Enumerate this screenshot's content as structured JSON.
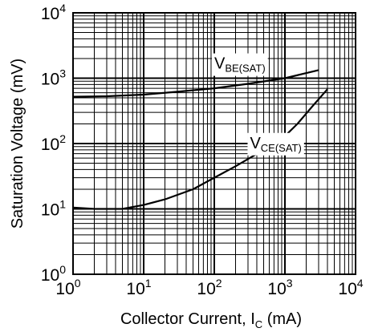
{
  "chart_data": {
    "type": "line",
    "x_scale": "log",
    "y_scale": "log",
    "xlim": [
      1,
      10000
    ],
    "ylim": [
      1,
      10000
    ],
    "grid": true,
    "xlabel": {
      "text": "Collector Current, I",
      "sub": "C",
      "unit": " (mA)"
    },
    "ylabel": "Saturation Voltage (mV)",
    "x_ticks": [
      {
        "base": "10",
        "exp": "0"
      },
      {
        "base": "10",
        "exp": "1"
      },
      {
        "base": "10",
        "exp": "2"
      },
      {
        "base": "10",
        "exp": "3"
      },
      {
        "base": "10",
        "exp": "4"
      }
    ],
    "y_ticks": [
      {
        "base": "10",
        "exp": "0"
      },
      {
        "base": "10",
        "exp": "1"
      },
      {
        "base": "10",
        "exp": "2"
      },
      {
        "base": "10",
        "exp": "3"
      },
      {
        "base": "10",
        "exp": "4"
      }
    ],
    "series": [
      {
        "label_main": "V",
        "label_sub": "BE(SAT)",
        "label_at": [
          100,
          1400
        ],
        "color": "#000000",
        "points": [
          [
            1,
            520
          ],
          [
            3,
            530
          ],
          [
            10,
            560
          ],
          [
            30,
            620
          ],
          [
            100,
            700
          ],
          [
            300,
            820
          ],
          [
            1000,
            1000
          ],
          [
            3000,
            1330
          ]
        ]
      },
      {
        "label_main": "V",
        "label_sub": "CE(SAT)",
        "label_at": [
          320,
          85
        ],
        "color": "#000000",
        "points": [
          [
            1,
            10.5
          ],
          [
            2,
            10
          ],
          [
            5,
            10
          ],
          [
            10,
            11.5
          ],
          [
            20,
            14
          ],
          [
            50,
            20
          ],
          [
            100,
            30
          ],
          [
            200,
            45
          ],
          [
            500,
            80
          ],
          [
            1000,
            130
          ],
          [
            1500,
            200
          ],
          [
            2500,
            380
          ],
          [
            4000,
            680
          ]
        ]
      }
    ]
  }
}
